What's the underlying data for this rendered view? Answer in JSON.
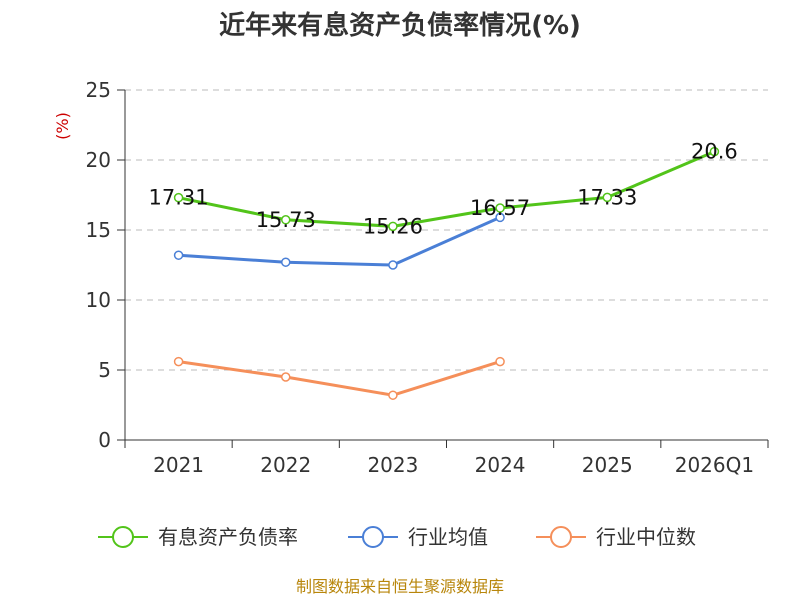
{
  "chart_data": {
    "type": "line",
    "title": "近年来有息资产负债率情况(%)",
    "unit_label": "(%)",
    "categories": [
      "2021",
      "2022",
      "2023",
      "2024",
      "2025",
      "2026Q1"
    ],
    "ylim": [
      0,
      25
    ],
    "yticks": [
      0,
      5,
      10,
      15,
      20,
      25
    ],
    "grid": true,
    "legend_position": "bottom",
    "series": [
      {
        "name": "有息资产负债率",
        "color": "#52c41a",
        "values": [
          17.31,
          15.73,
          15.26,
          16.57,
          17.33,
          20.6
        ],
        "labels": [
          "17.31",
          "15.73",
          "15.26",
          "16.57",
          "17.33",
          "20.6"
        ]
      },
      {
        "name": "行业均值",
        "color": "#4a7fd6",
        "values": [
          13.2,
          12.7,
          12.5,
          15.9,
          null,
          null
        ]
      },
      {
        "name": "行业中位数",
        "color": "#f58f5a",
        "values": [
          5.6,
          4.5,
          3.2,
          5.6,
          null,
          null
        ]
      }
    ]
  },
  "source": "制图数据来自恒生聚源数据库"
}
